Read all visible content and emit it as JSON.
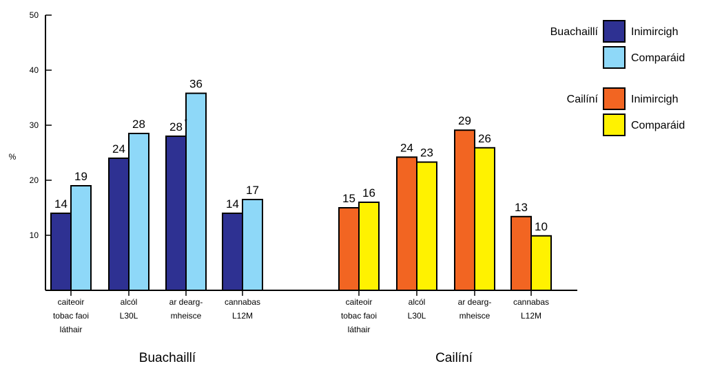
{
  "chart_data": {
    "type": "bar",
    "ylabel": "%",
    "ylim": [
      0,
      50
    ],
    "yticks": [
      10,
      20,
      30,
      40,
      50
    ],
    "grid": false,
    "legend_position": "top-right",
    "colors": {
      "boys_immigrant": "#2e3192",
      "boys_comparison": "#8ed8f8",
      "girls_immigrant": "#f26522",
      "girls_comparison": "#fff200"
    },
    "categories": [
      [
        "caiteoir",
        "tobac faoi",
        "láthair"
      ],
      [
        "alcól",
        "L30L"
      ],
      [
        "ar dearg-",
        "mheisce"
      ],
      [
        "cannabas",
        "L12M"
      ]
    ],
    "groups": [
      {
        "name": "Buachaillí",
        "series": [
          {
            "name": "Inimircigh",
            "values": [
              14,
              24,
              28,
              14
            ],
            "labels": [
              "14",
              "24",
              "28",
              "14"
            ],
            "color": "#2e3192"
          },
          {
            "name": "Comparáid",
            "values": [
              19,
              28.5,
              35.8,
              16.5
            ],
            "labels": [
              "19",
              "28",
              "36",
              "17"
            ],
            "color": "#8ed8f8"
          }
        ],
        "significance_marks": [
          {
            "category": 2,
            "series": 0,
            "mark": "*"
          }
        ]
      },
      {
        "name": "Cailíní",
        "series": [
          {
            "name": "Inimircigh",
            "values": [
              15,
              24.2,
              29.1,
              13.4
            ],
            "labels": [
              "15",
              "24",
              "29",
              "13"
            ],
            "color": "#f26522"
          },
          {
            "name": "Comparáid",
            "values": [
              16,
              23.3,
              25.9,
              9.9
            ],
            "labels": [
              "16",
              "23",
              "26",
              "10"
            ],
            "color": "#fff200"
          }
        ],
        "significance_marks": []
      }
    ],
    "legend": [
      {
        "group": "Buachaillí",
        "entries": [
          {
            "label": "Inimircigh",
            "color": "#2e3192"
          },
          {
            "label": "Comparáid",
            "color": "#8ed8f8"
          }
        ]
      },
      {
        "group": "Cailíní",
        "entries": [
          {
            "label": "Inimircigh",
            "color": "#f26522"
          },
          {
            "label": "Comparáid",
            "color": "#fff200"
          }
        ]
      }
    ]
  }
}
